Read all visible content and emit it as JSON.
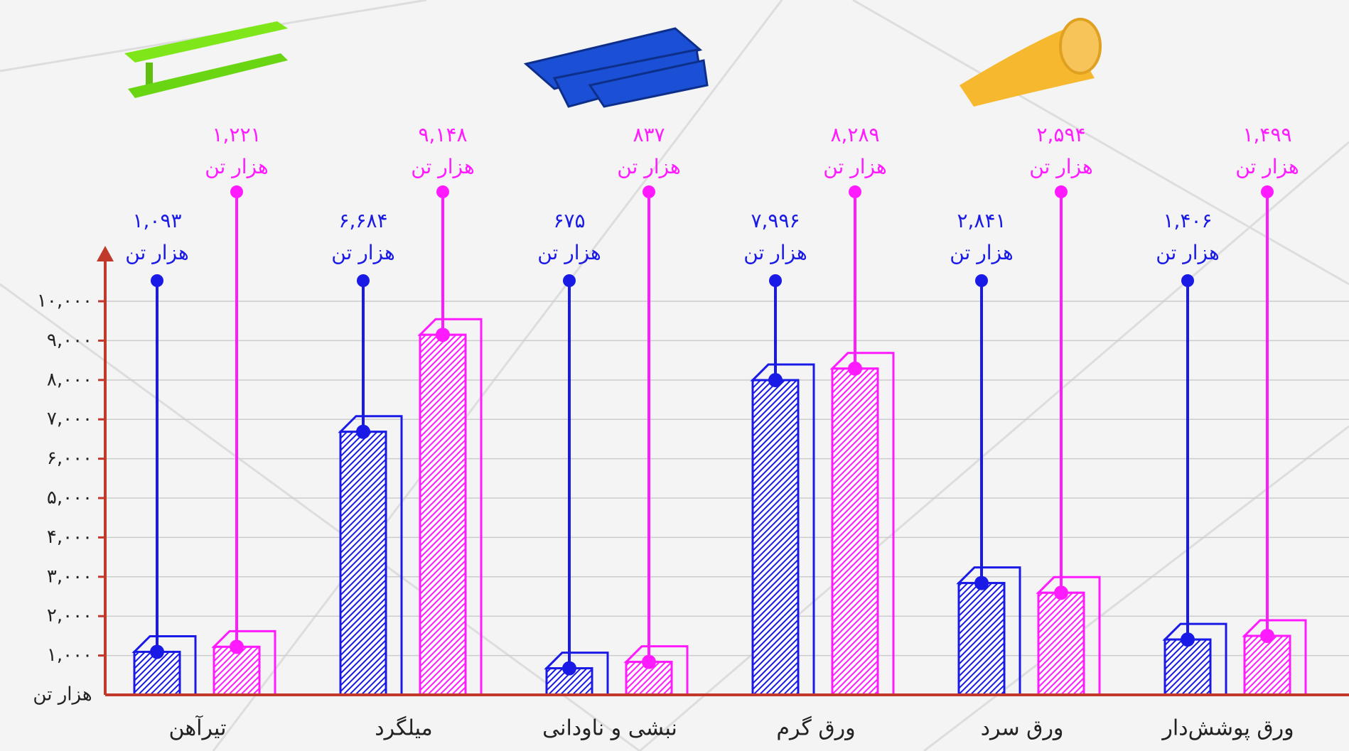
{
  "chart_data": {
    "type": "bar",
    "y_label": "هزار تن",
    "categories": [
      "تیرآهن",
      "میلگرد",
      "نبشی و ناودانی",
      "ورق گرم",
      "ورق سرد",
      "ورق پوشش‌دار"
    ],
    "series": [
      {
        "color": "#1a1ae6",
        "values": [
          1093,
          6684,
          675,
          7996,
          2841,
          1406
        ],
        "value_labels": [
          "۱,۰۹۳",
          "۶,۶۸۴",
          "۶۷۵",
          "۷,۹۹۶",
          "۲,۸۴۱",
          "۱,۴۰۶"
        ]
      },
      {
        "color": "#ff1aff",
        "values": [
          1221,
          9148,
          837,
          8289,
          2594,
          1499
        ],
        "value_labels": [
          "۱,۲۲۱",
          "۹,۱۴۸",
          "۸۳۷",
          "۸,۲۸۹",
          "۲,۵۹۴",
          "۱,۴۹۹"
        ]
      }
    ],
    "ylim": [
      0,
      11300
    ],
    "yticks": [
      {
        "value": 1000,
        "label": "۱,۰۰۰"
      },
      {
        "value": 2000,
        "label": "۲,۰۰۰"
      },
      {
        "value": 3000,
        "label": "۳,۰۰۰"
      },
      {
        "value": 4000,
        "label": "۴,۰۰۰"
      },
      {
        "value": 5000,
        "label": "۵,۰۰۰"
      },
      {
        "value": 6000,
        "label": "۶,۰۰۰"
      },
      {
        "value": 7000,
        "label": "۷,۰۰۰"
      },
      {
        "value": 8000,
        "label": "۸,۰۰۰"
      },
      {
        "value": 9000,
        "label": "۹,۰۰۰"
      },
      {
        "value": 10000,
        "label": "۱۰,۰۰۰"
      }
    ],
    "grid": true,
    "axis_color": "#c0392b"
  }
}
